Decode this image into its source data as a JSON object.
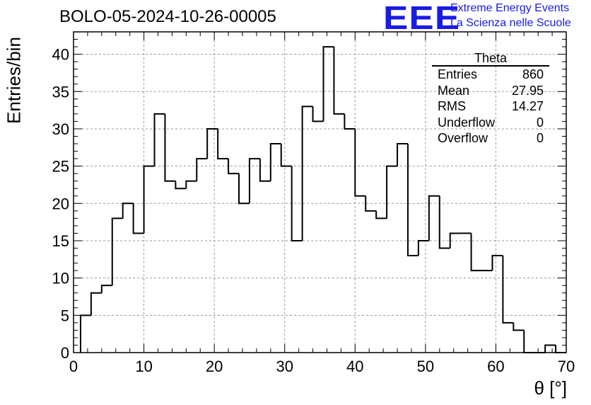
{
  "title": "BOLO-05-2024-10-26-00005",
  "logo": {
    "mark": "EEE",
    "line1": "Extreme Energy Events",
    "line2": "La Scienza nelle Scuole",
    "color": "#1a1ae6"
  },
  "stats": {
    "name": "Theta",
    "rows": [
      {
        "label": "Entries",
        "value": "860"
      },
      {
        "label": "Mean",
        "value": "27.95"
      },
      {
        "label": "RMS",
        "value": "14.27"
      },
      {
        "label": "Underflow",
        "value": "0"
      },
      {
        "label": "Overflow",
        "value": "0"
      }
    ]
  },
  "chart_data": {
    "type": "bar",
    "style": "step-histogram",
    "title": "BOLO-05-2024-10-26-00005",
    "xlabel": "θ [°]",
    "ylabel": "Entries/bin",
    "xlim": [
      0,
      70
    ],
    "ylim": [
      0,
      43
    ],
    "grid": true,
    "xticks": [
      0,
      10,
      20,
      30,
      40,
      50,
      60,
      70
    ],
    "yticks": [
      0,
      5,
      10,
      15,
      20,
      25,
      30,
      35,
      40
    ],
    "bin_width": 1.5,
    "bin_edges_start": 1.0,
    "values": [
      5,
      8,
      9,
      18,
      20,
      16,
      25,
      32,
      23,
      22,
      23,
      26,
      30,
      26,
      24,
      20,
      26,
      23,
      28,
      25,
      15,
      33,
      31,
      41,
      32,
      30,
      21,
      19,
      18,
      25,
      28,
      13,
      15,
      21,
      14,
      16,
      16,
      11,
      11,
      13,
      4,
      3,
      0,
      0,
      1,
      0
    ]
  }
}
